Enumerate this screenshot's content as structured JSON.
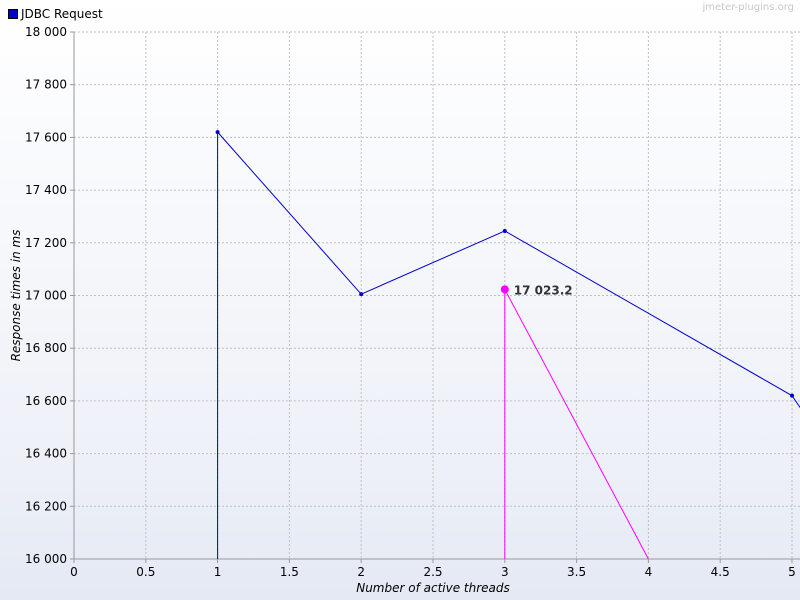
{
  "legend": {
    "label": "JDBC Request",
    "color": "#0000cc"
  },
  "watermark": "jmeter-plugins.org",
  "chart_data": {
    "type": "line",
    "title": "",
    "xlabel": "Number of active threads",
    "ylabel": "Response times in ms",
    "xlim": [
      0,
      5
    ],
    "ylim": [
      16000,
      18000
    ],
    "x_ticks": [
      {
        "value": 0,
        "label": "0"
      },
      {
        "value": 0.5,
        "label": "0.5"
      },
      {
        "value": 1,
        "label": "1"
      },
      {
        "value": 1.5,
        "label": "1.5"
      },
      {
        "value": 2,
        "label": "2"
      },
      {
        "value": 2.5,
        "label": "2.5"
      },
      {
        "value": 3,
        "label": "3"
      },
      {
        "value": 3.5,
        "label": "3.5"
      },
      {
        "value": 4,
        "label": "4"
      },
      {
        "value": 4.5,
        "label": "4.5"
      },
      {
        "value": 5,
        "label": "5"
      }
    ],
    "y_ticks": [
      {
        "value": 16000,
        "label": "16 000"
      },
      {
        "value": 16200,
        "label": "16 200"
      },
      {
        "value": 16400,
        "label": "16 400"
      },
      {
        "value": 16600,
        "label": "16 600"
      },
      {
        "value": 16800,
        "label": "16 800"
      },
      {
        "value": 17000,
        "label": "17 000"
      },
      {
        "value": 17200,
        "label": "17 200"
      },
      {
        "value": 17400,
        "label": "17 400"
      },
      {
        "value": 17600,
        "label": "17 600"
      },
      {
        "value": 17800,
        "label": "17 800"
      },
      {
        "value": 18000,
        "label": "18 000"
      }
    ],
    "grid": true,
    "legend_position": "top-left",
    "series": [
      {
        "name": "JDBC Request",
        "color": "#0000cc",
        "x": [
          1,
          2,
          3,
          5
        ],
        "y": [
          17620,
          17005,
          17245,
          16620
        ],
        "drop_from_first": true,
        "continues_beyond": {
          "x": 5.1,
          "y": 16540
        }
      },
      {
        "color": "#ff00ff",
        "x": [
          3,
          4
        ],
        "y": [
          17023.2,
          16000
        ],
        "drop_from_first": true,
        "highlight": {
          "x": 3,
          "y": 17023.2,
          "label": "17 023.2"
        }
      }
    ]
  }
}
